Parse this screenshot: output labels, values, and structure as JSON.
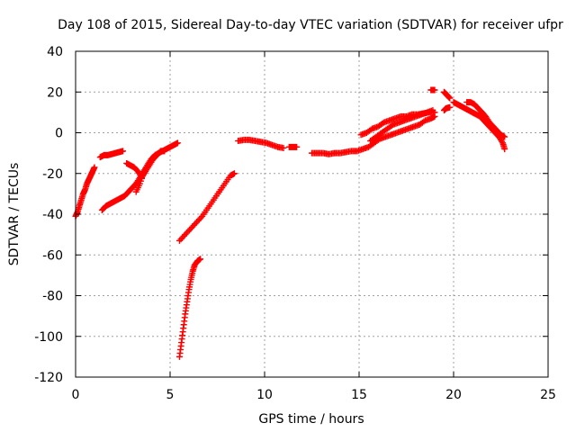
{
  "chart_data": {
    "type": "scatter",
    "title": "Day 108 of 2015, Sidereal Day-to-day VTEC variation (SDTVAR) for receiver ufpr",
    "xlabel": "GPS time / hours",
    "ylabel": "SDTVAR / TECUs",
    "xlim": [
      0,
      25
    ],
    "ylim": [
      -120,
      40
    ],
    "xticks": [
      0,
      5,
      10,
      15,
      20,
      25
    ],
    "yticks": [
      -120,
      -100,
      -80,
      -60,
      -40,
      -20,
      0,
      20,
      40
    ],
    "grid": true,
    "marker": "plus",
    "color": "#ff0000",
    "series": [
      {
        "name": "arc-1",
        "points": [
          [
            0.0,
            -41
          ],
          [
            0.1,
            -39
          ],
          [
            0.2,
            -36
          ],
          [
            0.3,
            -33
          ],
          [
            0.4,
            -30
          ],
          [
            0.5,
            -28
          ],
          [
            0.6,
            -25
          ],
          [
            0.7,
            -23
          ],
          [
            0.8,
            -21
          ],
          [
            0.9,
            -19
          ],
          [
            1.0,
            -17
          ]
        ]
      },
      {
        "name": "arc-2",
        "points": [
          [
            1.3,
            -12
          ],
          [
            1.5,
            -11
          ],
          [
            1.7,
            -11
          ],
          [
            1.9,
            -10.5
          ],
          [
            2.1,
            -10
          ],
          [
            2.3,
            -9.5
          ],
          [
            2.5,
            -9
          ]
        ]
      },
      {
        "name": "arc-3",
        "points": [
          [
            1.4,
            -38
          ],
          [
            1.6,
            -36
          ],
          [
            1.8,
            -35
          ],
          [
            2.0,
            -34
          ],
          [
            2.2,
            -33
          ],
          [
            2.4,
            -32
          ],
          [
            2.6,
            -31
          ],
          [
            2.8,
            -29
          ],
          [
            3.0,
            -27
          ],
          [
            3.2,
            -25
          ],
          [
            3.4,
            -22
          ],
          [
            3.6,
            -19
          ],
          [
            3.8,
            -16
          ],
          [
            4.0,
            -13
          ],
          [
            4.2,
            -11
          ],
          [
            4.4,
            -10
          ],
          [
            4.6,
            -9
          ],
          [
            4.8,
            -8
          ],
          [
            5.0,
            -7
          ],
          [
            5.2,
            -6
          ],
          [
            5.4,
            -5
          ]
        ]
      },
      {
        "name": "arc-4",
        "points": [
          [
            2.7,
            -15
          ],
          [
            2.9,
            -16
          ],
          [
            3.1,
            -17
          ],
          [
            3.3,
            -19
          ],
          [
            3.5,
            -22
          ],
          [
            3.7,
            -19
          ],
          [
            3.9,
            -16
          ],
          [
            4.1,
            -13
          ],
          [
            4.3,
            -11
          ],
          [
            4.5,
            -9
          ],
          [
            4.7,
            -9
          ]
        ]
      },
      {
        "name": "arc-5",
        "points": [
          [
            3.2,
            -29
          ],
          [
            3.4,
            -25
          ],
          [
            3.6,
            -20
          ],
          [
            3.8,
            -16
          ],
          [
            4.0,
            -13
          ],
          [
            4.2,
            -11
          ]
        ]
      },
      {
        "name": "arc-6",
        "points": [
          [
            5.5,
            -53
          ],
          [
            5.8,
            -50
          ],
          [
            6.1,
            -47
          ],
          [
            6.4,
            -44
          ],
          [
            6.7,
            -41
          ],
          [
            7.0,
            -37
          ],
          [
            7.3,
            -33
          ],
          [
            7.6,
            -29
          ],
          [
            7.9,
            -25
          ],
          [
            8.2,
            -21
          ],
          [
            8.4,
            -20
          ]
        ]
      },
      {
        "name": "arc-7",
        "points": [
          [
            5.5,
            -110
          ],
          [
            5.6,
            -103
          ],
          [
            5.7,
            -96
          ],
          [
            5.8,
            -89
          ],
          [
            5.9,
            -83
          ],
          [
            6.0,
            -77
          ],
          [
            6.1,
            -72
          ],
          [
            6.2,
            -68
          ],
          [
            6.3,
            -65
          ],
          [
            6.45,
            -63
          ],
          [
            6.6,
            -62
          ]
        ]
      },
      {
        "name": "arc-8",
        "points": [
          [
            8.6,
            -4
          ],
          [
            8.9,
            -3.5
          ],
          [
            9.2,
            -3.5
          ],
          [
            9.5,
            -4
          ],
          [
            9.8,
            -4.5
          ],
          [
            10.1,
            -5
          ],
          [
            10.4,
            -6
          ],
          [
            10.7,
            -7
          ],
          [
            11.0,
            -7.5
          ]
        ]
      },
      {
        "name": "arc-9",
        "points": [
          [
            11.3,
            -7
          ],
          [
            11.5,
            -7
          ],
          [
            11.7,
            -7
          ]
        ]
      },
      {
        "name": "arc-10",
        "points": [
          [
            12.5,
            -10
          ],
          [
            12.8,
            -10
          ],
          [
            13.1,
            -10
          ],
          [
            13.4,
            -10.5
          ],
          [
            13.7,
            -10
          ],
          [
            14.0,
            -10
          ],
          [
            14.3,
            -9.5
          ],
          [
            14.6,
            -9
          ],
          [
            14.9,
            -9
          ],
          [
            15.2,
            -8
          ],
          [
            15.5,
            -7
          ],
          [
            15.8,
            -5
          ],
          [
            16.1,
            -3
          ],
          [
            16.4,
            -2
          ],
          [
            16.7,
            -1
          ],
          [
            17.0,
            0
          ],
          [
            17.3,
            1
          ],
          [
            17.6,
            2
          ],
          [
            17.9,
            3
          ],
          [
            18.2,
            4
          ],
          [
            18.5,
            6
          ],
          [
            18.8,
            7
          ],
          [
            19.0,
            8
          ]
        ]
      },
      {
        "name": "arc-11",
        "points": [
          [
            15.1,
            -1
          ],
          [
            15.4,
            0
          ],
          [
            15.7,
            2
          ],
          [
            16.0,
            3
          ],
          [
            16.3,
            5
          ],
          [
            16.6,
            6
          ],
          [
            16.9,
            7
          ],
          [
            17.2,
            8
          ],
          [
            17.5,
            8
          ],
          [
            17.8,
            9
          ],
          [
            18.1,
            9
          ],
          [
            18.4,
            9.5
          ],
          [
            18.7,
            10
          ],
          [
            19.0,
            10
          ]
        ]
      },
      {
        "name": "arc-12",
        "points": [
          [
            15.6,
            -4
          ],
          [
            15.9,
            -2
          ],
          [
            16.2,
            0
          ],
          [
            16.5,
            2
          ],
          [
            16.8,
            4
          ],
          [
            17.1,
            5
          ],
          [
            17.4,
            6
          ],
          [
            17.7,
            7
          ],
          [
            18.0,
            8
          ],
          [
            18.3,
            9
          ],
          [
            18.6,
            10
          ],
          [
            18.9,
            11
          ]
        ]
      },
      {
        "name": "arc-13",
        "points": [
          [
            18.8,
            21
          ],
          [
            19.0,
            21
          ]
        ]
      },
      {
        "name": "arc-14",
        "points": [
          [
            19.5,
            20
          ],
          [
            19.6,
            19
          ],
          [
            19.7,
            18
          ],
          [
            19.8,
            17
          ]
        ]
      },
      {
        "name": "arc-15",
        "points": [
          [
            19.5,
            11
          ],
          [
            19.6,
            12
          ],
          [
            19.8,
            12.5
          ]
        ]
      },
      {
        "name": "arc-16",
        "points": [
          [
            20.0,
            15
          ],
          [
            20.2,
            14
          ],
          [
            20.4,
            13
          ],
          [
            20.6,
            12
          ],
          [
            20.8,
            11
          ],
          [
            21.0,
            10
          ],
          [
            21.2,
            9
          ],
          [
            21.4,
            8
          ],
          [
            21.6,
            6
          ],
          [
            21.8,
            4
          ],
          [
            22.0,
            2
          ],
          [
            22.2,
            0
          ],
          [
            22.4,
            -2
          ],
          [
            22.6,
            -5
          ],
          [
            22.7,
            -8
          ]
        ]
      },
      {
        "name": "arc-17",
        "points": [
          [
            20.7,
            15
          ],
          [
            20.9,
            15
          ],
          [
            21.1,
            14
          ],
          [
            21.3,
            12
          ],
          [
            21.5,
            10
          ],
          [
            21.7,
            8
          ],
          [
            21.9,
            5
          ],
          [
            22.1,
            3
          ],
          [
            22.3,
            1
          ],
          [
            22.5,
            -1
          ],
          [
            22.7,
            -2
          ]
        ]
      }
    ]
  }
}
